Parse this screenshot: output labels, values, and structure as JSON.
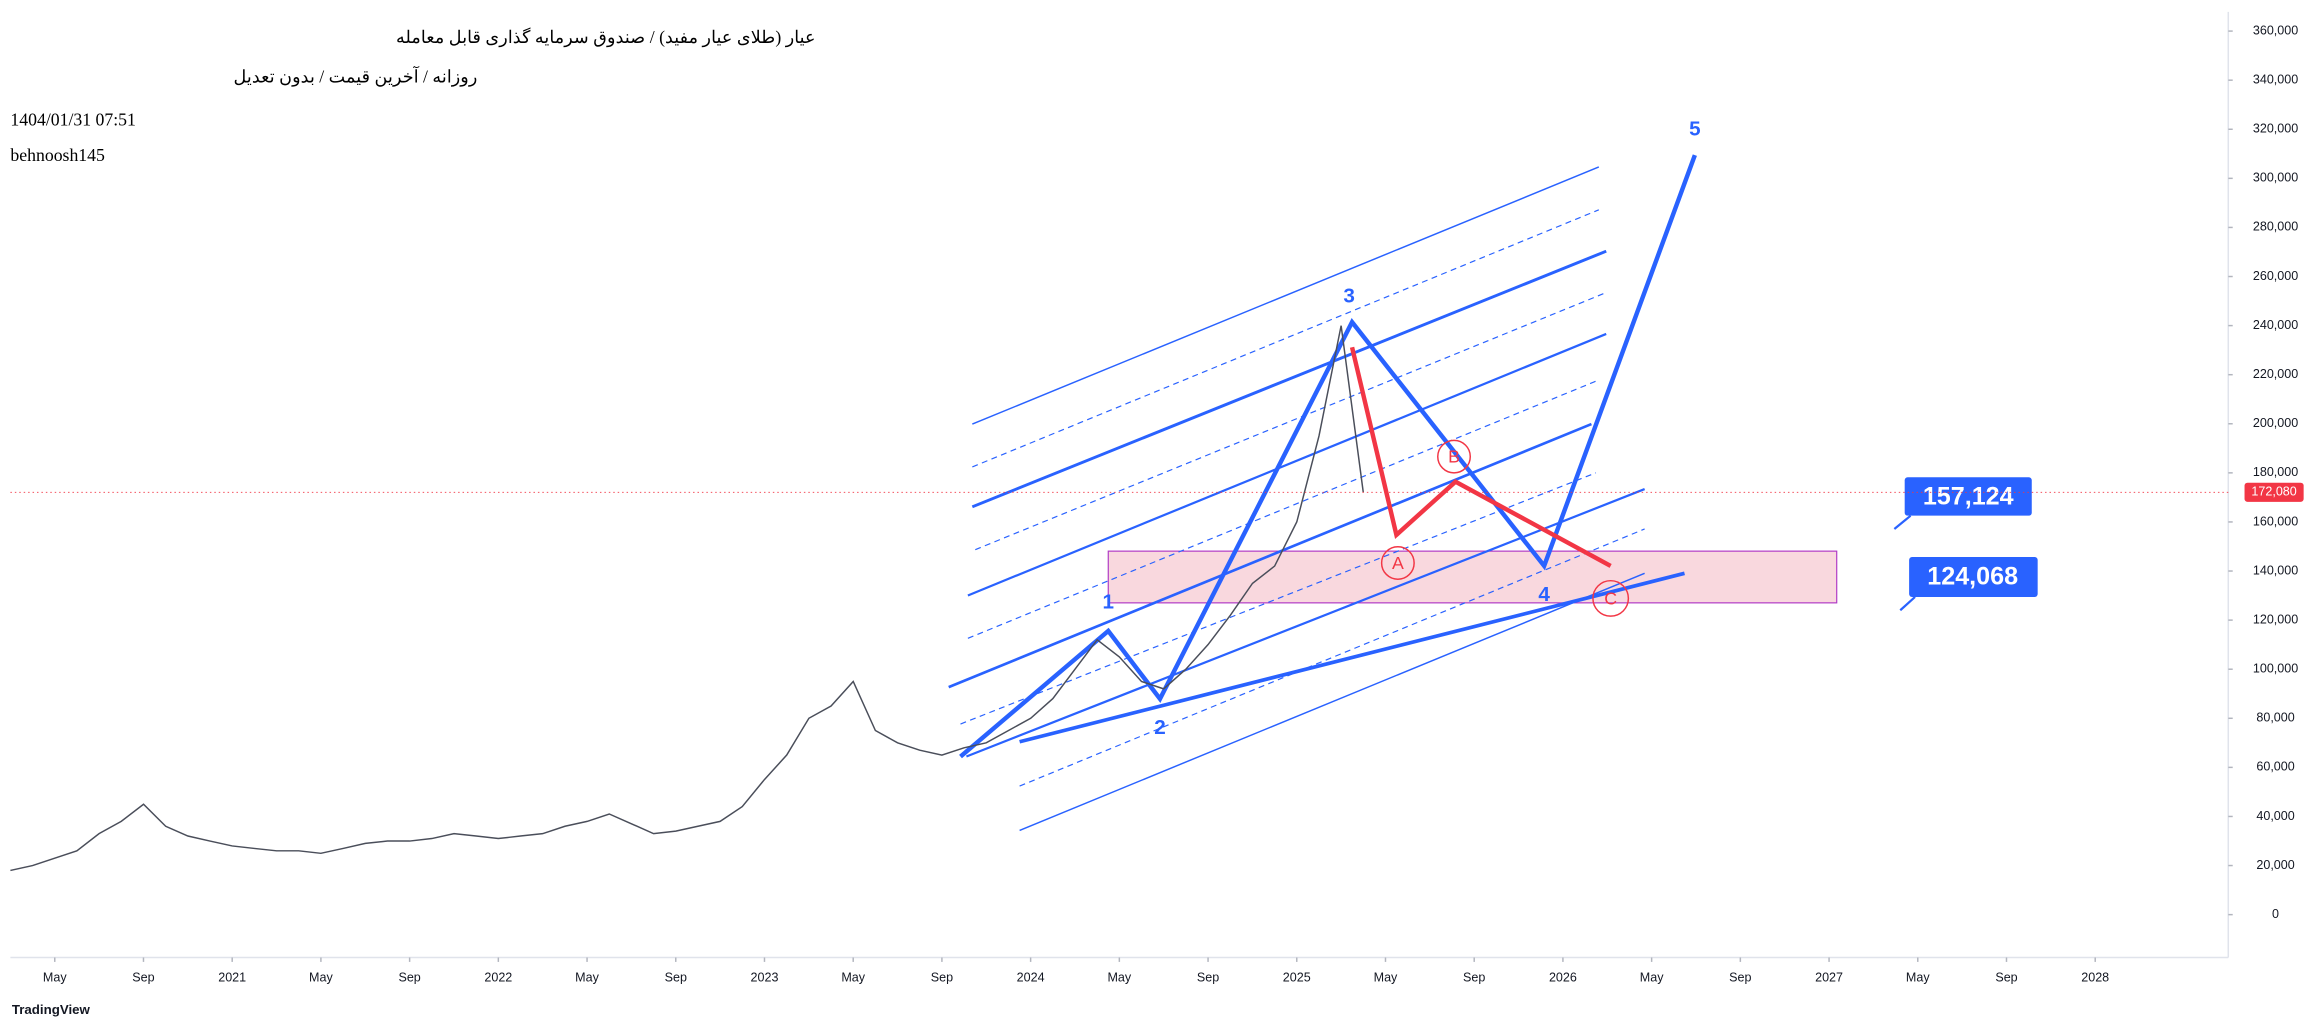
{
  "chart_data": {
    "type": "line",
    "title": "عیار (طلای عیار مفید) / صندوق سرمایه گذاری قابل معامله",
    "subtitle": "روزانه / آخرین قیمت / بدون تعدیل",
    "timestamp": "1404/01/31 07:51",
    "author": "behnoosh145",
    "watermark": "TradingView",
    "color": "#4a4e5a",
    "grid": false,
    "x": [
      "2020-03",
      "2020-04",
      "2020-05",
      "2020-06",
      "2020-07",
      "2020-08",
      "2020-09",
      "2020-10",
      "2020-11",
      "2020-12",
      "2021-01",
      "2021-02",
      "2021-03",
      "2021-04",
      "2021-05",
      "2021-06",
      "2021-07",
      "2021-08",
      "2021-09",
      "2021-10",
      "2021-11",
      "2021-12",
      "2022-01",
      "2022-02",
      "2022-03",
      "2022-04",
      "2022-05",
      "2022-06",
      "2022-07",
      "2022-08",
      "2022-09",
      "2022-10",
      "2022-11",
      "2022-12",
      "2023-01",
      "2023-02",
      "2023-03",
      "2023-04",
      "2023-05",
      "2023-06",
      "2023-07",
      "2023-08",
      "2023-09",
      "2023-10",
      "2023-11",
      "2023-12",
      "2024-01",
      "2024-02",
      "2024-03",
      "2024-04",
      "2024-05",
      "2024-06",
      "2024-07",
      "2024-08",
      "2024-09",
      "2024-10",
      "2024-11",
      "2024-12",
      "2025-01",
      "2025-02",
      "2025-03",
      "2025-04"
    ],
    "values": [
      18000,
      20000,
      23000,
      26000,
      33000,
      38000,
      45000,
      36000,
      32000,
      30000,
      28000,
      27000,
      26000,
      26000,
      25000,
      27000,
      29000,
      30000,
      30000,
      31000,
      33000,
      32000,
      31000,
      32000,
      33000,
      36000,
      38000,
      41000,
      37000,
      33000,
      34000,
      36000,
      38000,
      44000,
      55000,
      65000,
      80000,
      85000,
      95000,
      75000,
      70000,
      67000,
      65000,
      68000,
      70000,
      75000,
      80000,
      88000,
      100000,
      112000,
      105000,
      95000,
      92000,
      100000,
      110000,
      122000,
      135000,
      142000,
      160000,
      195000,
      240000,
      172000
    ],
    "xlim": [
      "2020-03",
      "2028-07"
    ],
    "xticks": [
      {
        "value": "2020-05",
        "label": "May"
      },
      {
        "value": "2020-09",
        "label": "Sep"
      },
      {
        "value": "2021-01",
        "label": "2021"
      },
      {
        "value": "2021-05",
        "label": "May"
      },
      {
        "value": "2021-09",
        "label": "Sep"
      },
      {
        "value": "2022-01",
        "label": "2022"
      },
      {
        "value": "2022-05",
        "label": "May"
      },
      {
        "value": "2022-09",
        "label": "Sep"
      },
      {
        "value": "2023-01",
        "label": "2023"
      },
      {
        "value": "2023-05",
        "label": "May"
      },
      {
        "value": "2023-09",
        "label": "Sep"
      },
      {
        "value": "2024-01",
        "label": "2024"
      },
      {
        "value": "2024-05",
        "label": "May"
      },
      {
        "value": "2024-09",
        "label": "Sep"
      },
      {
        "value": "2025-01",
        "label": "2025"
      },
      {
        "value": "2025-05",
        "label": "May"
      },
      {
        "value": "2025-09",
        "label": "Sep"
      },
      {
        "value": "2026-01",
        "label": "2026"
      },
      {
        "value": "2026-05",
        "label": "May"
      },
      {
        "value": "2026-09",
        "label": "Sep"
      },
      {
        "value": "2027-01",
        "label": "2027"
      },
      {
        "value": "2027-05",
        "label": "May"
      },
      {
        "value": "2027-09",
        "label": "Sep"
      },
      {
        "value": "2028-01",
        "label": "2028"
      }
    ],
    "ylim": [
      -17460,
      367850
    ],
    "yticks": [
      0,
      {
        "value": 20000,
        "label": "20,000"
      },
      {
        "value": 40000,
        "label": "40,000"
      },
      {
        "value": 60000,
        "label": "60,000"
      },
      {
        "value": 80000,
        "label": "80,000"
      },
      {
        "value": 100000,
        "label": "100,000"
      },
      {
        "value": 120000,
        "label": "120,000"
      },
      {
        "value": 140000,
        "label": "140,000"
      },
      {
        "value": 160000,
        "label": "160,000"
      },
      {
        "value": 180000,
        "label": "180,000"
      },
      {
        "value": 200000,
        "label": "200,000"
      },
      {
        "value": 220000,
        "label": "220,000"
      },
      {
        "value": 240000,
        "label": "240,000"
      },
      {
        "value": 260000,
        "label": "260,000"
      },
      {
        "value": 280000,
        "label": "280,000"
      },
      {
        "value": 300000,
        "label": "300,000"
      },
      {
        "value": 320000,
        "label": "320,000"
      },
      {
        "value": 340000,
        "label": "340,000"
      },
      {
        "value": 360000,
        "label": "360,000"
      }
    ],
    "last_price": {
      "value": 172080,
      "label": "172,080"
    },
    "wave_labels": [
      "1",
      "2",
      "3",
      "4",
      "5"
    ],
    "abc_labels": [
      "A",
      "B",
      "C"
    ],
    "price_boxes": [
      "157,124",
      "124,068"
    ]
  }
}
